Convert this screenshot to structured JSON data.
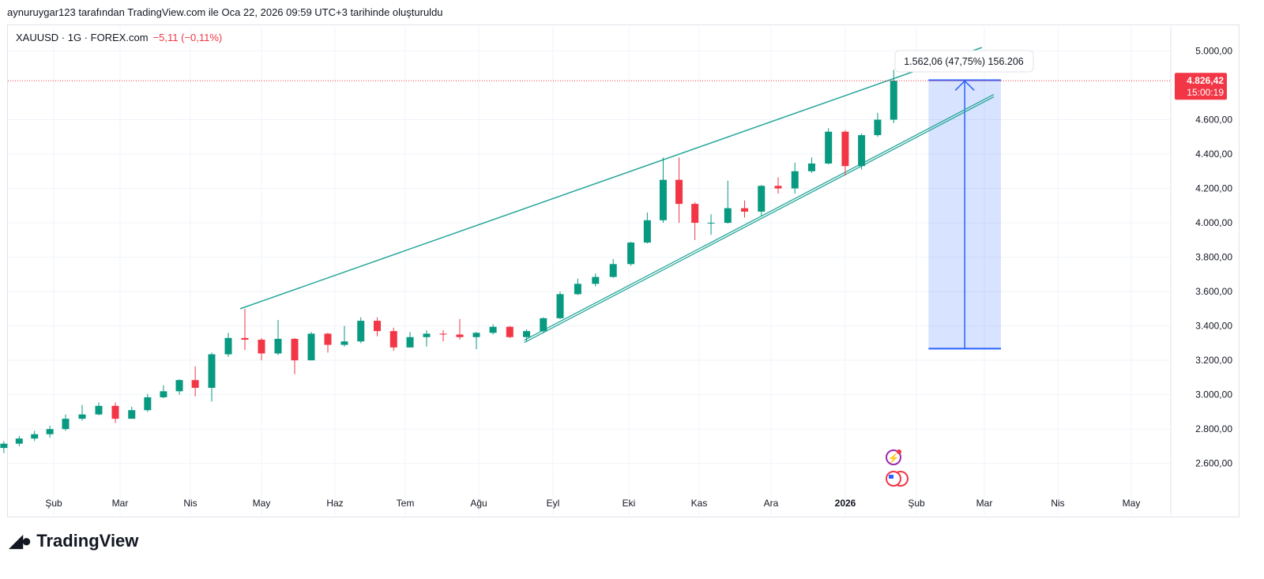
{
  "header": {
    "credit": "aynuruygar123 tarafından TradingView.com ile Oca 22, 2026 09:59 UTC+3 tarihinde oluşturuldu",
    "symbol": "XAUUSD · 1G · FOREX.com",
    "change": "−5,11 (−0,11%)"
  },
  "footer": {
    "logo_text": "TradingView",
    "logo_mark": "17"
  },
  "colors": {
    "up": "#089981",
    "down": "#f23645",
    "trendline": "#26a69a",
    "measure": "#2962ff",
    "price_label": "#f23645"
  },
  "icons": [
    "lightning-event-icon",
    "us-flag-economic-event-icon"
  ],
  "chart_data": {
    "type": "candlestick",
    "symbol": "XAUUSD",
    "interval": "1G",
    "ylim": [
      2300,
      5140
    ],
    "grid": true,
    "y_ticks": [
      {
        "v": 5000,
        "label": "5.000,00"
      },
      {
        "v": 4600,
        "label": "4.600,00"
      },
      {
        "v": 4400,
        "label": "4.400,00"
      },
      {
        "v": 4200,
        "label": "4.200,00"
      },
      {
        "v": 4000,
        "label": "4.000,00"
      },
      {
        "v": 3800,
        "label": "3.800,00"
      },
      {
        "v": 3600,
        "label": "3.600,00"
      },
      {
        "v": 3400,
        "label": "3.400,00"
      },
      {
        "v": 3200,
        "label": "3.200,00"
      },
      {
        "v": 3000,
        "label": "3.000,00"
      },
      {
        "v": 2800,
        "label": "2.800,00"
      },
      {
        "v": 2600,
        "label": "2.600,00"
      }
    ],
    "x_ticks": [
      {
        "d": "2025-02-01",
        "label": "Şub"
      },
      {
        "d": "2025-03-01",
        "label": "Mar"
      },
      {
        "d": "2025-04-01",
        "label": "Nis"
      },
      {
        "d": "2025-05-01",
        "label": "May"
      },
      {
        "d": "2025-06-01",
        "label": "Haz"
      },
      {
        "d": "2025-07-01",
        "label": "Tem"
      },
      {
        "d": "2025-08-01",
        "label": "Ağu"
      },
      {
        "d": "2025-09-01",
        "label": "Eyl"
      },
      {
        "d": "2025-10-01",
        "label": "Eki"
      },
      {
        "d": "2025-11-01",
        "label": "Kas"
      },
      {
        "d": "2025-12-01",
        "label": "Ara"
      },
      {
        "d": "2026-01-01",
        "label": "2026",
        "bold": true
      },
      {
        "d": "2026-02-01",
        "label": "Şub"
      },
      {
        "d": "2026-03-01",
        "label": "Mar"
      },
      {
        "d": "2026-04-01",
        "label": "Nis"
      },
      {
        "d": "2026-05-01",
        "label": "May"
      }
    ],
    "candles": [
      [
        "2025-01-02",
        2630,
        2700,
        2620,
        2690
      ],
      [
        "2025-01-06",
        2690,
        2730,
        2660,
        2715
      ],
      [
        "2025-01-13",
        2715,
        2760,
        2700,
        2745
      ],
      [
        "2025-01-20",
        2745,
        2790,
        2730,
        2770
      ],
      [
        "2025-01-27",
        2770,
        2820,
        2750,
        2800
      ],
      [
        "2025-02-03",
        2800,
        2885,
        2790,
        2860
      ],
      [
        "2025-02-10",
        2860,
        2940,
        2850,
        2885
      ],
      [
        "2025-02-17",
        2885,
        2955,
        2880,
        2935
      ],
      [
        "2025-02-24",
        2935,
        2955,
        2835,
        2860
      ],
      [
        "2025-03-03",
        2860,
        2930,
        2860,
        2910
      ],
      [
        "2025-03-10",
        2910,
        3005,
        2900,
        2985
      ],
      [
        "2025-03-17",
        2985,
        3055,
        2980,
        3020
      ],
      [
        "2025-03-24",
        3020,
        3090,
        3000,
        3085
      ],
      [
        "2025-03-31",
        3085,
        3165,
        2990,
        3040
      ],
      [
        "2025-04-07",
        3040,
        3245,
        2960,
        3235
      ],
      [
        "2025-04-14",
        3235,
        3360,
        3220,
        3330
      ],
      [
        "2025-04-21",
        3330,
        3500,
        3260,
        3320
      ],
      [
        "2025-04-28",
        3320,
        3330,
        3200,
        3240
      ],
      [
        "2025-05-05",
        3240,
        3435,
        3230,
        3325
      ],
      [
        "2025-05-12",
        3325,
        3330,
        3120,
        3200
      ],
      [
        "2025-05-19",
        3200,
        3365,
        3200,
        3355
      ],
      [
        "2025-05-26",
        3355,
        3360,
        3245,
        3290
      ],
      [
        "2025-06-02",
        3290,
        3400,
        3280,
        3310
      ],
      [
        "2025-06-09",
        3310,
        3450,
        3300,
        3430
      ],
      [
        "2025-06-16",
        3430,
        3450,
        3340,
        3370
      ],
      [
        "2025-06-23",
        3370,
        3390,
        3255,
        3275
      ],
      [
        "2025-06-30",
        3275,
        3365,
        3275,
        3335
      ],
      [
        "2025-07-07",
        3335,
        3375,
        3280,
        3355
      ],
      [
        "2025-07-14",
        3355,
        3375,
        3310,
        3350
      ],
      [
        "2025-07-21",
        3350,
        3440,
        3320,
        3335
      ],
      [
        "2025-07-28",
        3335,
        3365,
        3265,
        3360
      ],
      [
        "2025-08-04",
        3360,
        3410,
        3350,
        3395
      ],
      [
        "2025-08-11",
        3395,
        3400,
        3330,
        3335
      ],
      [
        "2025-08-18",
        3335,
        3380,
        3310,
        3370
      ],
      [
        "2025-08-25",
        3370,
        3450,
        3360,
        3445
      ],
      [
        "2025-09-01",
        3445,
        3600,
        3440,
        3585
      ],
      [
        "2025-09-08",
        3585,
        3675,
        3580,
        3645
      ],
      [
        "2025-09-15",
        3645,
        3705,
        3630,
        3685
      ],
      [
        "2025-09-22",
        3685,
        3790,
        3680,
        3760
      ],
      [
        "2025-09-29",
        3760,
        3890,
        3750,
        3885
      ],
      [
        "2025-10-06",
        3885,
        4060,
        3880,
        4015
      ],
      [
        "2025-10-13",
        4015,
        4380,
        4000,
        4250
      ],
      [
        "2025-10-20",
        4250,
        4380,
        4000,
        4110
      ],
      [
        "2025-10-27",
        4110,
        4120,
        3900,
        4000
      ],
      [
        "2025-11-03",
        4000,
        4050,
        3930,
        4000
      ],
      [
        "2025-11-10",
        4000,
        4245,
        3995,
        4085
      ],
      [
        "2025-11-17",
        4085,
        4130,
        4030,
        4065
      ],
      [
        "2025-11-24",
        4065,
        4220,
        4040,
        4215
      ],
      [
        "2025-12-01",
        4215,
        4265,
        4170,
        4200
      ],
      [
        "2025-12-08",
        4200,
        4350,
        4170,
        4300
      ],
      [
        "2025-12-15",
        4300,
        4380,
        4290,
        4345
      ],
      [
        "2025-12-22",
        4345,
        4550,
        4340,
        4530
      ],
      [
        "2025-12-29",
        4530,
        4540,
        4275,
        4330
      ],
      [
        "2026-01-05",
        4330,
        4520,
        4310,
        4510
      ],
      [
        "2026-01-12",
        4510,
        4640,
        4500,
        4600
      ],
      [
        "2026-01-19",
        4600,
        4890,
        4580,
        4826.42
      ]
    ],
    "last_price": {
      "value": 4826.42,
      "label": "4.826,42",
      "countdown": "15:00:19"
    },
    "trendlines": [
      {
        "from": [
          "2025-04-22",
          3500
        ],
        "to": [
          "2026-02-28",
          5020
        ]
      },
      {
        "from": [
          "2025-08-20",
          3310
        ],
        "to": [
          "2026-03-05",
          4740
        ],
        "double": true
      }
    ],
    "measure": {
      "from_date": "2026-02-06",
      "to_date": "2026-03-08",
      "from_price": 3268,
      "to_price": 4830,
      "label": "1.562,06 (47,75%) 156.206"
    }
  }
}
